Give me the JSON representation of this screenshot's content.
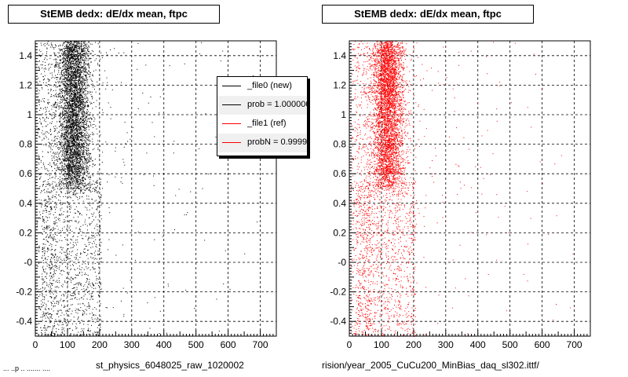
{
  "panels": [
    {
      "title": "StEMB dedx: dE/dx mean, ftpc",
      "xcaption": "st_physics_6048025_raw_1020002"
    },
    {
      "title": "StEMB dedx: dE/dx mean, ftpc",
      "xcaption": "rision/year_2005_CuCu200_MinBias_daq_sl302.ittf/"
    }
  ],
  "legend": {
    "entries": [
      {
        "label": "_file0 (new)",
        "color": "#000000"
      },
      {
        "label": "prob = 1.000000",
        "color": "#000000"
      },
      {
        "label": "_file1 (ref)",
        "color": "#ff0000"
      },
      {
        "label": "probN = 0.999989",
        "color": "#ff0000"
      }
    ]
  },
  "bottom_note": "... ..p .. ....... ....",
  "colors": {
    "new": "#000000",
    "ref": "#ff0000"
  },
  "chart_data": [
    {
      "type": "scatter",
      "title": "StEMB dedx: dE/dx mean, ftpc",
      "xlabel": "st_physics_6048025_raw_1020002",
      "xlim": [
        0,
        750
      ],
      "ylim": [
        -0.5,
        1.5
      ],
      "xticks": [
        "0",
        "100",
        "200",
        "300",
        "400",
        "500",
        "600",
        "700"
      ],
      "yticks": [
        "-0.4",
        "-0.2",
        "-0",
        "0.2",
        "0.4",
        "0.6",
        "0.8",
        "1",
        "1.2",
        "1.4"
      ],
      "grid": true,
      "legend_position": "top-right",
      "series": [
        {
          "name": "_file0 (new)",
          "color": "#000000",
          "description_points": {
            "band_x_center": 120,
            "band_x_width": 60,
            "band_y_range": [
              0.5,
              1.5
            ],
            "tail_x_max": 200
          }
        }
      ]
    },
    {
      "type": "scatter",
      "title": "StEMB dedx: dE/dx mean, ftpc",
      "xlabel": "rision/year_2005_CuCu200_MinBias_daq_sl302.ittf/",
      "xlim": [
        0,
        750
      ],
      "ylim": [
        -0.5,
        1.5
      ],
      "xticks": [
        "0",
        "100",
        "200",
        "300",
        "400",
        "500",
        "600",
        "700"
      ],
      "yticks": [
        "-0.4",
        "-0.2",
        "-0",
        "0.2",
        "0.4",
        "0.6",
        "0.8",
        "1",
        "1.2",
        "1.4"
      ],
      "grid": true,
      "series": [
        {
          "name": "_file1 (ref)",
          "color": "#ff0000",
          "description_points": {
            "band_x_center": 120,
            "band_x_width": 60,
            "band_y_range": [
              0.5,
              1.5
            ],
            "tail_x_max": 200
          }
        }
      ]
    }
  ]
}
